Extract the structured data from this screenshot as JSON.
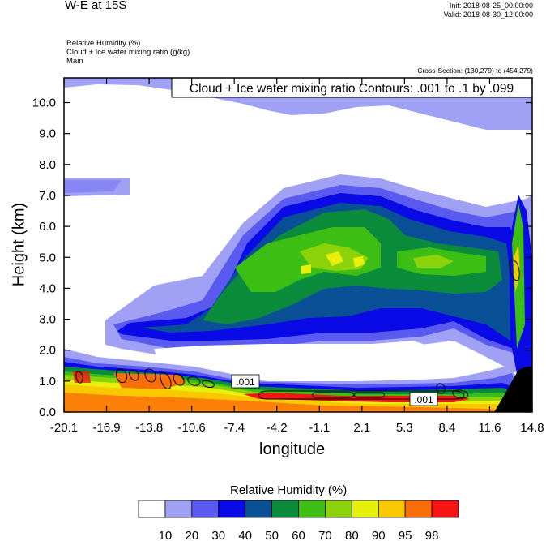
{
  "header": {
    "title": "W-E at 15S",
    "init": "Init: 2018-08-25_00:00:00",
    "valid": "Valid: 2018-08-30_12:00:00"
  },
  "meta": {
    "line1": "Relative Humidity   (%)",
    "line2": "Cloud + Ice water mixing ratio   (g/kg)",
    "line3": "Main"
  },
  "cross_section": "Cross-Section: (130,279) to (454,279)",
  "contour_label": "Cloud + Ice water mixing ratio Contours: .001 to .1 by .099",
  "contour_value_labels": [
    ".001",
    ".001"
  ],
  "colorbar": {
    "title": "Relative Humidity  (%)",
    "levels": [
      "10",
      "20",
      "30",
      "40",
      "50",
      "60",
      "70",
      "80",
      "90",
      "95",
      "98"
    ],
    "colors": [
      "#ffffff",
      "#a0a0f5",
      "#5a5af0",
      "#0a0ae6",
      "#0a5096",
      "#0a8c3c",
      "#3cbe14",
      "#8cd20a",
      "#e6f00a",
      "#fac800",
      "#fa6e0a",
      "#f51414"
    ]
  },
  "chart_data": {
    "type": "heatmap",
    "title": "W-E at 15S",
    "xlabel": "longitude",
    "ylabel": "Height (km)",
    "xticks": [
      "-20.1",
      "-16.9",
      "-13.8",
      "-10.6",
      "-7.4",
      "-4.2",
      "-1.1",
      "2.1",
      "5.3",
      "8.4",
      "11.6",
      "14.8"
    ],
    "yticks": [
      "0.0",
      "1.0",
      "2.0",
      "3.0",
      "4.0",
      "5.0",
      "6.0",
      "7.0",
      "8.0",
      "9.0",
      "10.0"
    ],
    "xlim": [
      -20.1,
      14.8
    ],
    "ylim": [
      0,
      10.8
    ],
    "variable": "Relative Humidity (%)",
    "contour_variable": "Cloud + Ice water mixing ratio (g/kg)",
    "contour_levels": [
      0.001,
      0.1
    ]
  }
}
